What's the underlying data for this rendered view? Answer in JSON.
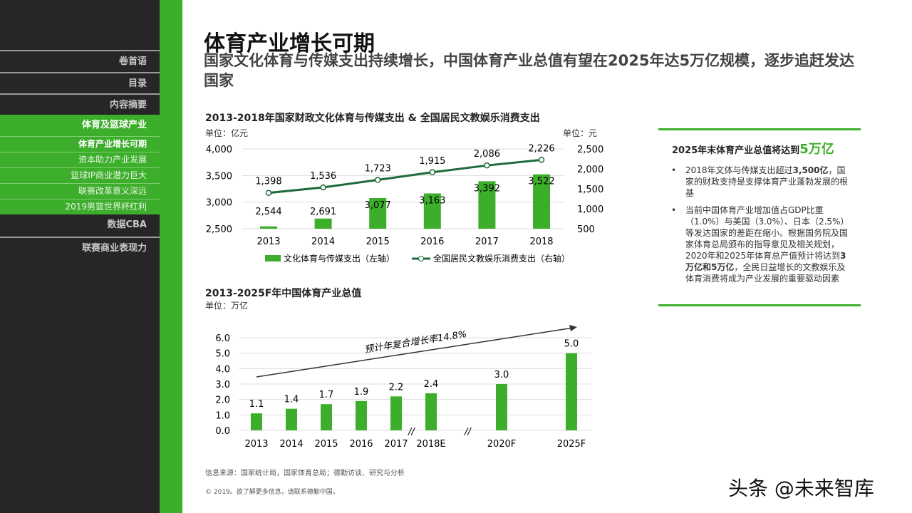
{
  "sidebar": {
    "items": [
      "卷首语",
      "目录",
      "内容摘要",
      "体育及篮球产业",
      "数据CBA",
      "联赛商业表现力"
    ],
    "subitems": [
      "体育产业增长可期",
      "资本助力产业发展",
      "篮球IP商业潜力巨大",
      "联赛改革意义深远",
      "2019男篮世界杯红利"
    ]
  },
  "header": {
    "title": "体育产业增长可期",
    "subtitle": "国家文化体育与传媒支出持续增长，中国体育产业总值有望在2025年达5万亿规模，逐步追赶发达国家"
  },
  "colors": {
    "accent": "#3dae2b",
    "line": "#1e6b3a",
    "sidebar": "#262626"
  },
  "chart_data": [
    {
      "type": "bar+line",
      "title": "2013-2018年国家财政文化体育与传媒支出 & 全国居民文教娱乐消费支出",
      "left_unit": "单位：亿元",
      "right_unit": "单位：元",
      "categories": [
        "2013",
        "2014",
        "2015",
        "2016",
        "2017",
        "2018"
      ],
      "left_ticks": [
        "4,000",
        "3,500",
        "3,000",
        "2,500"
      ],
      "right_ticks": [
        "2,500",
        "2,000",
        "1,500",
        "1,000",
        "500"
      ],
      "ylim_left": [
        2500,
        4000
      ],
      "ylim_right": [
        500,
        2500
      ],
      "series": [
        {
          "name": "文化体育与传媒支出（左轴）",
          "type": "bar",
          "axis": "left",
          "values": [
            2544,
            2691,
            3077,
            3163,
            3392,
            3522
          ],
          "labels": [
            "2,544",
            "2,691",
            "3,077",
            "3,163",
            "3,392",
            "3,522"
          ]
        },
        {
          "name": "全国居民文教娱乐消费支出（右轴）",
          "type": "line",
          "axis": "right",
          "values": [
            1398,
            1536,
            1723,
            1915,
            2086,
            2226
          ],
          "labels": [
            "1,398",
            "1,536",
            "1,723",
            "1,915",
            "2,086",
            "2,226"
          ]
        }
      ],
      "grid": true,
      "legend": "bottom"
    },
    {
      "type": "bar",
      "title": "2013-2025F年中国体育产业总值",
      "unit": "单位：万亿",
      "categories": [
        "2013",
        "2014",
        "2015",
        "2016",
        "2017",
        "2018E",
        "2020F",
        "2025F"
      ],
      "values": [
        1.1,
        1.4,
        1.7,
        1.9,
        2.2,
        2.4,
        3.0,
        5.0
      ],
      "labels": [
        "1.1",
        "1.4",
        "1.7",
        "1.9",
        "2.2",
        "2.4",
        "3.0",
        "5.0"
      ],
      "y_ticks": [
        "6.0",
        "5.0",
        "4.0",
        "3.0",
        "2.0",
        "1.0",
        "0.0"
      ],
      "ylim": [
        0,
        6
      ],
      "annotation": "预计年复合增长率14.8%",
      "grid": true
    }
  ],
  "box": {
    "heading": "2025年末体育产业总值将达到",
    "heading_emph": "5万亿",
    "bullet1": [
      "2018年文体与传媒支出超过",
      "3,500亿",
      "，国家的财政支持是支撑体育产业蓬勃发展的根基"
    ],
    "bullet2": [
      "当前中国体育产业增加值占GDP比重（1.0%）与美国（3.0%）、日本（2.5%）等发达国家的差距在缩小。根据国务院及国家体育总局颁布的指导意见及相关规划，2020年和2025年体育总产值预计将达到",
      "3万亿和5万亿",
      "，全民日益增长的文教娱乐及体育消费将成为产业发展的重要驱动因素"
    ]
  },
  "footer": {
    "source": "信息来源：国家统计局，国家体育总局；德勤访谈、研究与分析",
    "copyright": "© 2019。欲了解更多信息，请联系德勤中国。",
    "watermark": "头条 @未来智库"
  }
}
